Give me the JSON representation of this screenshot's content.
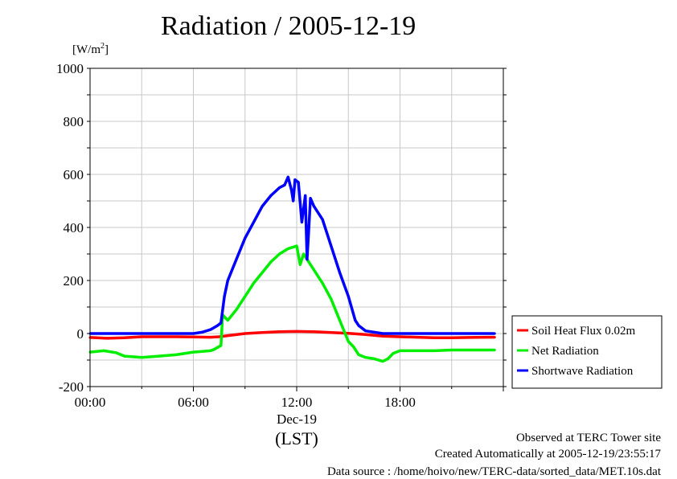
{
  "chart_data": {
    "type": "line",
    "title": "Radiation / 2005-12-19",
    "ylabel": "[W/m",
    "ylabel_sup": "2",
    "ylabel_end": "]",
    "xlabel": "(LST)",
    "date_label": "Dec-19",
    "xlim": [
      0,
      24
    ],
    "ylim": [
      -200,
      1000
    ],
    "x_ticks": [
      {
        "x": 0,
        "label": "00:00"
      },
      {
        "x": 6,
        "label": "06:00"
      },
      {
        "x": 12,
        "label": "12:00"
      },
      {
        "x": 18,
        "label": "18:00"
      }
    ],
    "y_ticks": [
      {
        "y": -200,
        "label": "-200"
      },
      {
        "y": 0,
        "label": "0"
      },
      {
        "y": 200,
        "label": "200"
      },
      {
        "y": 400,
        "label": "400"
      },
      {
        "y": 600,
        "label": "600"
      },
      {
        "y": 800,
        "label": "800"
      },
      {
        "y": 1000,
        "label": "1000"
      }
    ],
    "grid": true,
    "legend_position": "right-outside-bottom",
    "series": [
      {
        "name": "Soil Heat Flux 0.02m",
        "color": "#ff0000",
        "x": [
          0,
          1,
          2,
          3,
          4,
          5,
          6,
          7,
          7.5,
          8,
          9,
          10,
          11,
          12,
          13,
          14,
          15,
          16,
          17,
          18,
          19,
          20,
          21,
          22,
          23,
          23.5
        ],
        "y": [
          -15,
          -18,
          -16,
          -12,
          -12,
          -12,
          -13,
          -14,
          -12,
          -8,
          0,
          4,
          7,
          8,
          7,
          4,
          1,
          -4,
          -10,
          -12,
          -14,
          -16,
          -16,
          -15,
          -14,
          -14
        ]
      },
      {
        "name": "Net Radiation",
        "color": "#00ee00",
        "x": [
          0,
          0.8,
          1.5,
          2,
          3,
          4,
          5,
          6,
          7,
          7.2,
          7.6,
          7.7,
          8,
          8.5,
          9,
          9.5,
          10,
          10.5,
          11,
          11.5,
          12,
          12.2,
          12.4,
          12.6,
          12.8,
          13,
          13.5,
          14,
          14.5,
          15,
          15.3,
          15.6,
          16,
          16.5,
          17,
          17.3,
          17.6,
          18,
          19,
          20,
          21,
          22,
          23,
          23.5
        ],
        "y": [
          -70,
          -65,
          -72,
          -85,
          -90,
          -85,
          -80,
          -70,
          -65,
          -60,
          -45,
          70,
          50,
          90,
          140,
          190,
          230,
          270,
          300,
          320,
          330,
          260,
          300,
          280,
          260,
          240,
          190,
          130,
          50,
          -30,
          -50,
          -80,
          -90,
          -95,
          -105,
          -95,
          -75,
          -65,
          -65,
          -65,
          -62,
          -62,
          -62,
          -62
        ]
      },
      {
        "name": "Shortwave Radiation",
        "color": "#0000ff",
        "x": [
          0,
          2,
          4,
          6,
          6.5,
          7,
          7.4,
          7.6,
          7.8,
          8,
          8.5,
          9,
          9.5,
          10,
          10.5,
          11,
          11.3,
          11.5,
          11.7,
          11.8,
          11.9,
          12.1,
          12.3,
          12.5,
          12.6,
          12.7,
          12.8,
          13,
          13.5,
          14,
          14.5,
          15,
          15.4,
          15.6,
          16,
          16.5,
          17,
          17.5,
          18,
          20,
          22,
          23.5
        ],
        "y": [
          0,
          0,
          0,
          0,
          5,
          15,
          30,
          40,
          140,
          200,
          280,
          360,
          420,
          480,
          520,
          550,
          560,
          590,
          540,
          500,
          580,
          570,
          420,
          520,
          280,
          390,
          510,
          480,
          430,
          330,
          230,
          140,
          50,
          30,
          10,
          5,
          0,
          0,
          0,
          0,
          0,
          0
        ]
      }
    ]
  },
  "footer": {
    "observed": "Observed at TERC Tower site",
    "created": "Created Automatically at 2005-12-19/23:55:17",
    "source": "Data source : /home/hoivo/new/TERC-data/sorted_data/MET.10s.dat"
  }
}
